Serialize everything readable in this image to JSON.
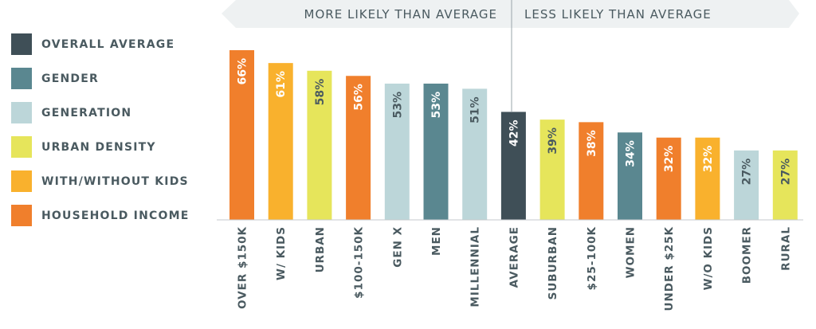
{
  "legend": [
    {
      "label": "OVERALL AVERAGE",
      "color": "#3f4f57"
    },
    {
      "label": "GENDER",
      "color": "#5a8790"
    },
    {
      "label": "GENERATION",
      "color": "#bcd6d9"
    },
    {
      "label": "URBAN DENSITY",
      "color": "#e6e55b"
    },
    {
      "label": "WITH/WITHOUT KIDS",
      "color": "#f9b12d"
    },
    {
      "label": "HOUSEHOLD INCOME",
      "color": "#f07f2c"
    }
  ],
  "banner": {
    "left_label": "MORE LIKELY THAN AVERAGE",
    "right_label": "LESS LIKELY THAN AVERAGE",
    "color": "#eef1f2"
  },
  "chart_data": {
    "type": "bar",
    "ylim": [
      0,
      70
    ],
    "categories": [
      "OVER $150K",
      "W/ KIDS",
      "URBAN",
      "$100-150K",
      "GEN X",
      "MEN",
      "MILLENNIAL",
      "AVERAGE",
      "SUBURBAN",
      "$25-100K",
      "WOMEN",
      "UNDER $25K",
      "W/O KIDS",
      "BOOMER",
      "RURAL"
    ],
    "values": [
      66,
      61,
      58,
      56,
      53,
      53,
      51,
      42,
      39,
      38,
      34,
      32,
      32,
      27,
      27
    ],
    "value_labels": [
      "66%",
      "61%",
      "58%",
      "56%",
      "53%",
      "53%",
      "51%",
      "42%",
      "39%",
      "38%",
      "34%",
      "32%",
      "32%",
      "27%",
      "27%"
    ],
    "groups": [
      "HOUSEHOLD INCOME",
      "WITH/WITHOUT KIDS",
      "URBAN DENSITY",
      "HOUSEHOLD INCOME",
      "GENERATION",
      "GENDER",
      "GENERATION",
      "OVERALL AVERAGE",
      "URBAN DENSITY",
      "HOUSEHOLD INCOME",
      "GENDER",
      "HOUSEHOLD INCOME",
      "WITH/WITHOUT KIDS",
      "GENERATION",
      "URBAN DENSITY"
    ]
  }
}
